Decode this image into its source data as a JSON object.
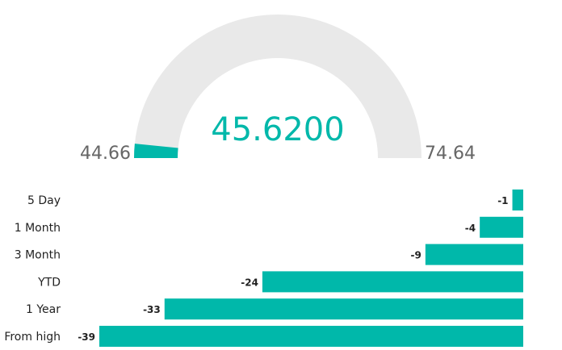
{
  "gauge": {
    "min_label": "44.66",
    "max_label": "74.64",
    "value_label": "45.6200",
    "min": 44.66,
    "max": 74.64,
    "value": 45.62,
    "fill_color": "#00B8AA",
    "track_color": "#E9E9E9",
    "value_color": "#00B8AA",
    "label_color": "#666666"
  },
  "chart_data": {
    "type": "bar",
    "orientation": "horizontal",
    "categories": [
      "5 Day",
      "1 Month",
      "3 Month",
      "YTD",
      "1 Year",
      "From high"
    ],
    "values": [
      -1,
      -4,
      -9,
      -24,
      -33,
      -39
    ],
    "value_labels": [
      "-1",
      "-4",
      "-9",
      "-24",
      "-33",
      "-39"
    ],
    "xlim": [
      -39,
      0
    ],
    "bar_color": "#00B8AA",
    "grid": false
  }
}
